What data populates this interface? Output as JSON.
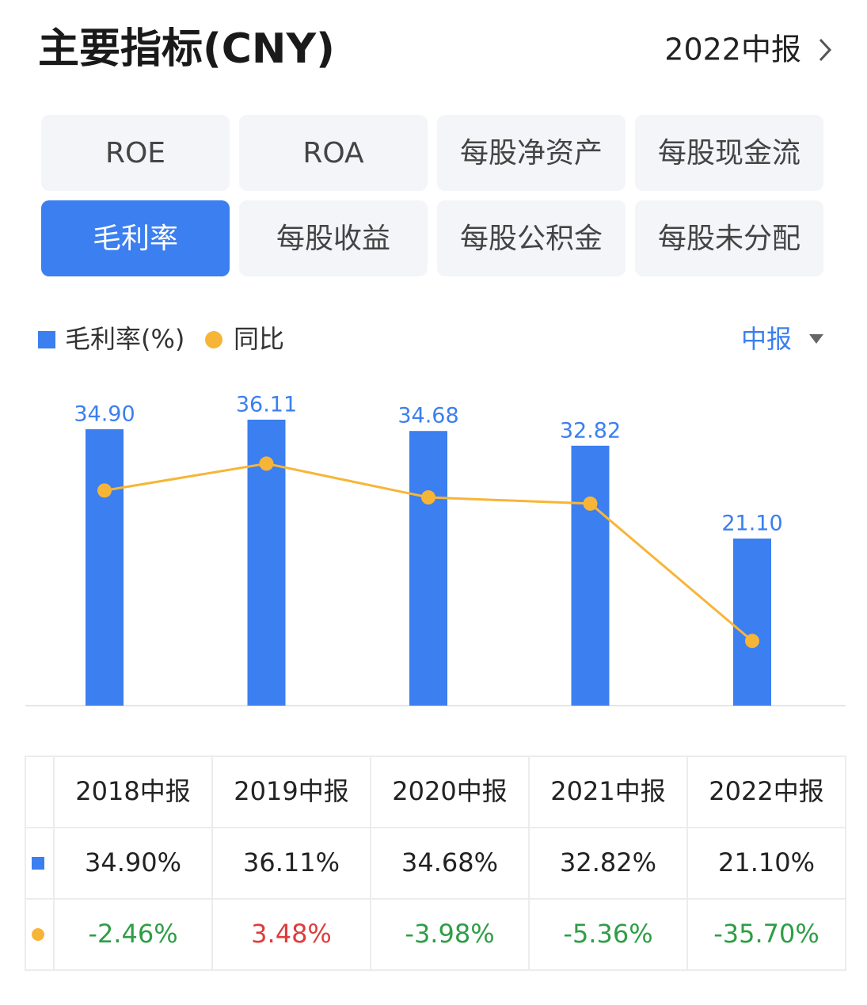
{
  "header": {
    "title": "主要指标(CNY)",
    "period": "2022中报"
  },
  "tabs": [
    "ROE",
    "ROA",
    "每股净资产",
    "每股现金流",
    "毛利率",
    "每股收益",
    "每股公积金",
    "每股未分配"
  ],
  "active_tab": 4,
  "period_selector": "中报",
  "chart_data": {
    "type": "bar",
    "categories": [
      "2018中报",
      "2019中报",
      "2020中报",
      "2021中报",
      "2022中报"
    ],
    "series": [
      {
        "name": "毛利率(%)",
        "color": "#3b7ff0",
        "values": [
          34.9,
          36.11,
          34.68,
          32.82,
          21.1
        ],
        "value_labels": [
          "34.90",
          "36.11",
          "34.68",
          "32.82",
          "21.10"
        ]
      },
      {
        "name": "同比",
        "color": "#f7b538",
        "type": "line",
        "axis": "y2",
        "values": [
          -2.46,
          3.48,
          -3.98,
          -5.36,
          -35.7
        ]
      }
    ],
    "ylim": [
      0,
      40
    ],
    "y2lim": [
      -50,
      20
    ]
  },
  "table": {
    "rows": [
      [
        "34.90%",
        "36.11%",
        "34.68%",
        "32.82%",
        "21.10%"
      ],
      [
        "-2.46%",
        "3.48%",
        "-3.98%",
        "-5.36%",
        "-35.70%"
      ]
    ]
  }
}
